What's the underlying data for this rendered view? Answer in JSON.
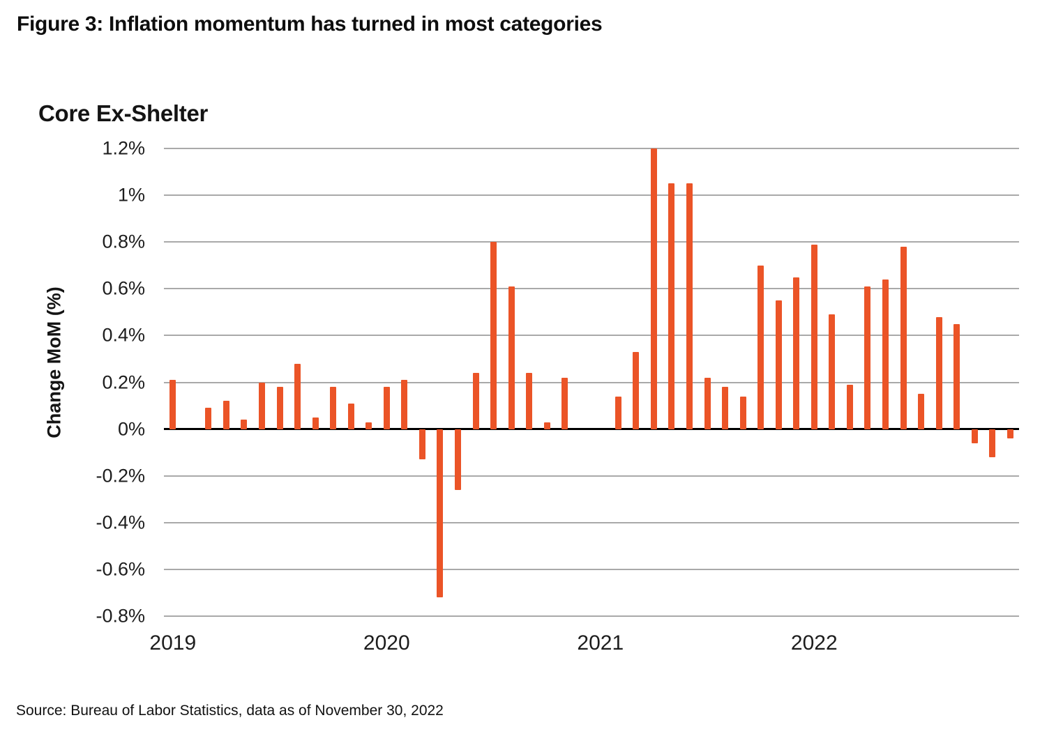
{
  "figure": {
    "title": "Figure 3: Inflation momentum has turned in most categories",
    "source": "Source: Bureau of Labor Statistics, data as of November 30, 2022"
  },
  "chart_data": {
    "type": "bar",
    "title": "Core Ex-Shelter",
    "xlabel": "",
    "ylabel": "Change MoM (%)",
    "ylim": [
      -0.8,
      1.2
    ],
    "grid": true,
    "legend": "none",
    "bar_color": "#EB5427",
    "gridline_color": "#A9A9A9",
    "zero_line_color": "#000000",
    "months": [
      "2019-01",
      "2019-02",
      "2019-03",
      "2019-04",
      "2019-05",
      "2019-06",
      "2019-07",
      "2019-08",
      "2019-09",
      "2019-10",
      "2019-11",
      "2019-12",
      "2020-01",
      "2020-02",
      "2020-03",
      "2020-04",
      "2020-05",
      "2020-06",
      "2020-07",
      "2020-08",
      "2020-09",
      "2020-10",
      "2020-11",
      "2020-12",
      "2021-01",
      "2021-02",
      "2021-03",
      "2021-04",
      "2021-05",
      "2021-06",
      "2021-07",
      "2021-08",
      "2021-09",
      "2021-10",
      "2021-11",
      "2021-12",
      "2022-01",
      "2022-02",
      "2022-03",
      "2022-04",
      "2022-05",
      "2022-06",
      "2022-07",
      "2022-08",
      "2022-09",
      "2022-10",
      "2022-11",
      "2022-12"
    ],
    "values": [
      0.21,
      0,
      0.09,
      0.12,
      0.04,
      0.2,
      0.18,
      0.28,
      0.05,
      0.18,
      0.11,
      0.03,
      0.18,
      0.21,
      -0.13,
      -0.72,
      -0.26,
      0.24,
      0.8,
      0.61,
      0.24,
      0.03,
      0.22,
      0,
      0,
      0.14,
      0.33,
      1.2,
      1.05,
      1.05,
      0.22,
      0.18,
      0.14,
      0.7,
      0.55,
      0.65,
      0.79,
      0.49,
      0.19,
      0.61,
      0.64,
      0.78,
      0.15,
      0.48,
      0.45,
      -0.06,
      -0.12,
      -0.04
    ],
    "y_ticks": [
      {
        "label": "1.2%",
        "value": 1.2
      },
      {
        "label": "1%",
        "value": 1.0
      },
      {
        "label": "0.8%",
        "value": 0.8
      },
      {
        "label": "0.6%",
        "value": 0.6
      },
      {
        "label": "0.4%",
        "value": 0.4
      },
      {
        "label": "0.2%",
        "value": 0.2
      },
      {
        "label": "0%",
        "value": 0
      },
      {
        "label": "-0.2%",
        "value": -0.2
      },
      {
        "label": "-0.4%",
        "value": -0.4
      },
      {
        "label": "-0.6%",
        "value": -0.6
      },
      {
        "label": "-0.8%",
        "value": -0.8
      }
    ],
    "x_ticks": [
      {
        "label": "2019",
        "index": 0
      },
      {
        "label": "2020",
        "index": 12
      },
      {
        "label": "2021",
        "index": 24
      },
      {
        "label": "2022",
        "index": 36
      }
    ]
  }
}
